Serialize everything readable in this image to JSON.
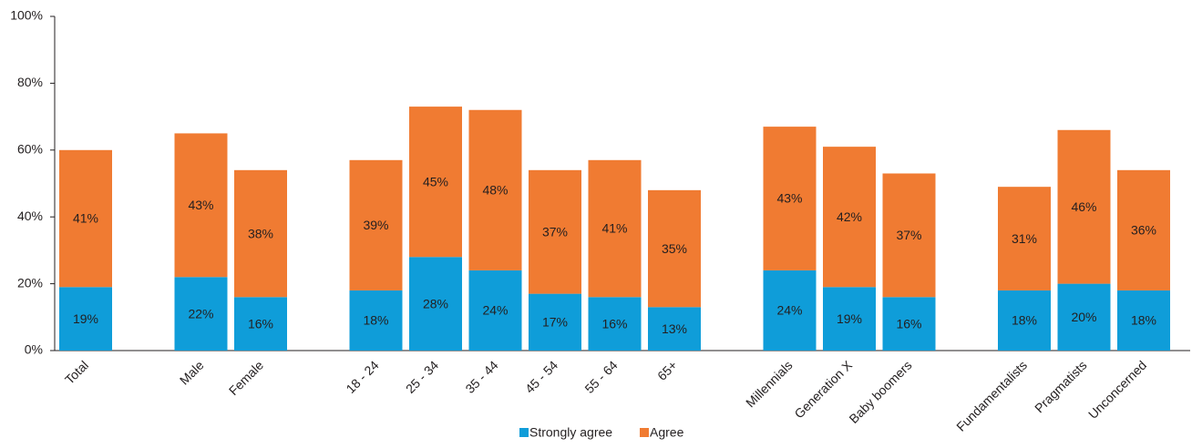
{
  "chart_data": {
    "type": "bar",
    "stacked": true,
    "categories": [
      "Total",
      "Male",
      "Female",
      "18 - 24",
      "25 - 34",
      "35 - 44",
      "45 - 54",
      "55 - 64",
      "65+",
      "Millennials",
      "Generation X",
      "Baby boomers",
      "Fundamentalists",
      "Pragmatists",
      "Unconcerned"
    ],
    "groups": [
      [
        0
      ],
      [
        1,
        2
      ],
      [
        3,
        4,
        5,
        6,
        7,
        8
      ],
      [
        9,
        10,
        11
      ],
      [
        12,
        13,
        14
      ]
    ],
    "series": [
      {
        "name": "Strongly agree",
        "color": "#0f9dd9",
        "values": [
          19,
          22,
          16,
          18,
          28,
          24,
          17,
          16,
          13,
          24,
          19,
          16,
          18,
          20,
          18
        ],
        "labels": [
          "19%",
          "22%",
          "16%",
          "18%",
          "28%",
          "24%",
          "17%",
          "16%",
          "13%",
          "24%",
          "19%",
          "16%",
          "18%",
          "20%",
          "18%"
        ]
      },
      {
        "name": "Agree",
        "color": "#f07b32",
        "values": [
          41,
          43,
          38,
          39,
          45,
          48,
          37,
          41,
          35,
          43,
          42,
          37,
          31,
          46,
          36
        ],
        "labels": [
          "41%",
          "43%",
          "38%",
          "39%",
          "45%",
          "48%",
          "37%",
          "41%",
          "35%",
          "43%",
          "42%",
          "37%",
          "31%",
          "46%",
          "36%"
        ]
      }
    ],
    "yTicks": [
      "0%",
      "20%",
      "40%",
      "60%",
      "80%",
      "100%"
    ],
    "ylim": [
      0,
      100
    ],
    "grid": false,
    "legend_position": "bottom-center"
  }
}
